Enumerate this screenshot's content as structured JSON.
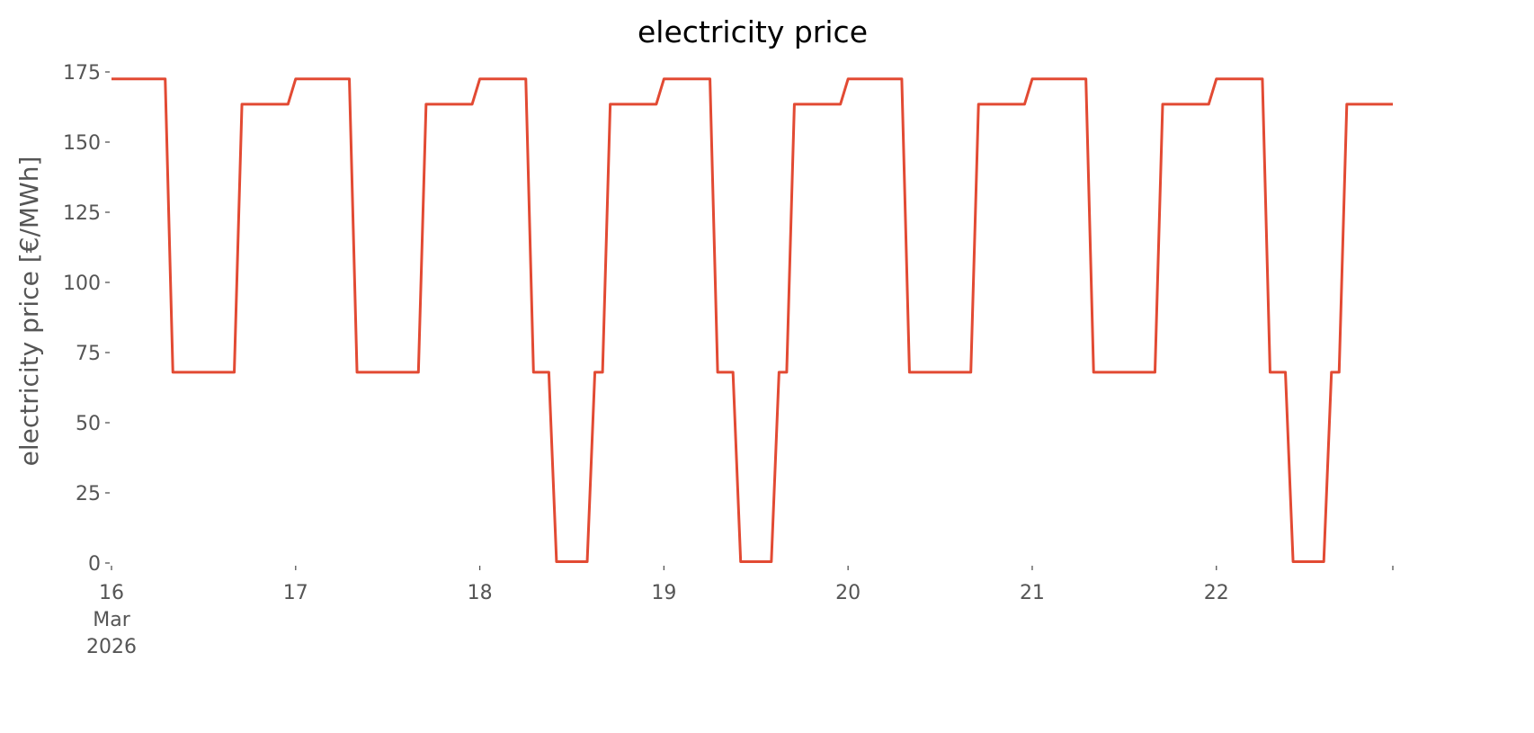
{
  "chart_data": {
    "type": "line",
    "title": "electricity price",
    "y_label": "electricity price [€/MWh]",
    "x": [
      0,
      1,
      2,
      3,
      4,
      5,
      6,
      7,
      8,
      9,
      10,
      11,
      12,
      13,
      14,
      15,
      16,
      17,
      18,
      19,
      20,
      21,
      22,
      23,
      24,
      25,
      26,
      27,
      28,
      29,
      30,
      31,
      32,
      33,
      34,
      35,
      36,
      37,
      38,
      39,
      40,
      41,
      42,
      43,
      44,
      45,
      46,
      47,
      48,
      49,
      50,
      51,
      52,
      53,
      54,
      55,
      56,
      57,
      58,
      59,
      60,
      61,
      62,
      63,
      64,
      65,
      66,
      67,
      68,
      69,
      70,
      71,
      72,
      73,
      74,
      75,
      76,
      77,
      78,
      79,
      80,
      81,
      82,
      83,
      84,
      85,
      86,
      87,
      88,
      89,
      90,
      91,
      92,
      93,
      94,
      95,
      96,
      97,
      98,
      99,
      100,
      101,
      102,
      103,
      104,
      105,
      106,
      107,
      108,
      109,
      110,
      111,
      112,
      113,
      114,
      115,
      116,
      117,
      118,
      119,
      120,
      121,
      122,
      123,
      124,
      125,
      126,
      127,
      128,
      129,
      130,
      131,
      132,
      133,
      134,
      135,
      136,
      137,
      138,
      139,
      140,
      141,
      142,
      143,
      144,
      145,
      146,
      147,
      148,
      149,
      150,
      151,
      152,
      153,
      154,
      155,
      156,
      157,
      158,
      159,
      160,
      161,
      162,
      163,
      164,
      165,
      166,
      167
    ],
    "series": [
      {
        "name": "electricity price",
        "color": "#e24a33",
        "values": [
          172.5,
          172.5,
          172.5,
          172.5,
          172.5,
          172.5,
          172.5,
          172.5,
          68,
          68,
          68,
          68,
          68,
          68,
          68,
          68,
          68,
          163.5,
          163.5,
          163.5,
          163.5,
          163.5,
          163.5,
          163.5,
          172.5,
          172.5,
          172.5,
          172.5,
          172.5,
          172.5,
          172.5,
          172.5,
          68,
          68,
          68,
          68,
          68,
          68,
          68,
          68,
          68,
          163.5,
          163.5,
          163.5,
          163.5,
          163.5,
          163.5,
          163.5,
          172.5,
          172.5,
          172.5,
          172.5,
          172.5,
          172.5,
          172.5,
          68,
          68,
          68,
          0.5,
          0.5,
          0.5,
          0.5,
          0.5,
          68,
          68,
          163.5,
          163.5,
          163.5,
          163.5,
          163.5,
          163.5,
          163.5,
          172.5,
          172.5,
          172.5,
          172.5,
          172.5,
          172.5,
          172.5,
          68,
          68,
          68,
          0.5,
          0.5,
          0.5,
          0.5,
          0.5,
          68,
          68,
          163.5,
          163.5,
          163.5,
          163.5,
          163.5,
          163.5,
          163.5,
          172.5,
          172.5,
          172.5,
          172.5,
          172.5,
          172.5,
          172.5,
          172.5,
          68,
          68,
          68,
          68,
          68,
          68,
          68,
          68,
          68,
          163.5,
          163.5,
          163.5,
          163.5,
          163.5,
          163.5,
          163.5,
          172.5,
          172.5,
          172.5,
          172.5,
          172.5,
          172.5,
          172.5,
          172.5,
          68,
          68,
          68,
          68,
          68,
          68,
          68,
          68,
          68,
          163.5,
          163.5,
          163.5,
          163.5,
          163.5,
          163.5,
          163.5,
          172.5,
          172.5,
          172.5,
          172.5,
          172.5,
          172.5,
          172.5,
          68,
          68,
          68,
          0.5,
          0.5,
          0.5,
          0.5,
          0.5,
          68,
          68,
          163.5,
          163.5,
          163.5,
          163.5,
          163.5,
          163.5,
          163.5
        ]
      }
    ],
    "xlim": [
      0,
      167
    ],
    "xticks": [
      {
        "value": 0,
        "label": "16\nMar\n2026"
      },
      {
        "value": 24,
        "label": "17"
      },
      {
        "value": 48,
        "label": "18"
      },
      {
        "value": 72,
        "label": "19"
      },
      {
        "value": 96,
        "label": "20"
      },
      {
        "value": 120,
        "label": "21"
      },
      {
        "value": 144,
        "label": "22"
      }
    ],
    "ylim": [
      0,
      175
    ],
    "yticks": [
      0,
      25,
      50,
      75,
      100,
      125,
      150,
      175
    ],
    "grid": false
  }
}
